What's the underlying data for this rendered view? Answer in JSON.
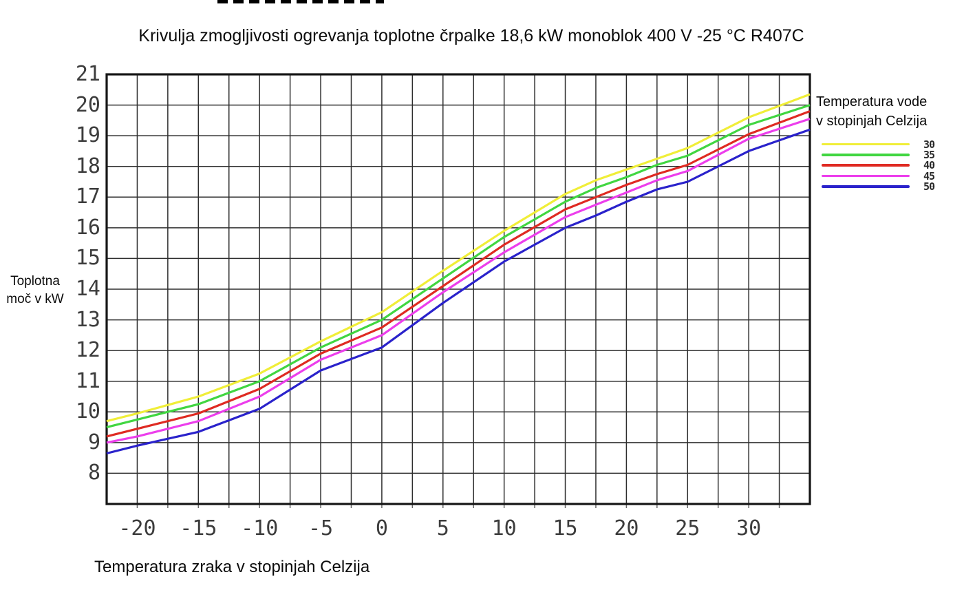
{
  "chart_data": {
    "type": "line",
    "title": "Krivulja zmogljivosti ogrevanja toplotne črpalke 18,6 kW monoblok 400 V -25 °C R407C",
    "xlabel": "Temperatura zraka v stopinjah Celzija",
    "ylabel": "Toplotna\nmoč v kW",
    "legend_title": "Temperatura vode\nv stopinjah Celzija",
    "legend_position": "right",
    "grid": "on",
    "xlim": [
      -22.5,
      35
    ],
    "ylim": [
      7,
      21
    ],
    "x_grid_step": 2.5,
    "y_grid_step": 1,
    "xticks": [
      -20,
      -15,
      -10,
      -5,
      0,
      5,
      10,
      15,
      20,
      25,
      30
    ],
    "yticks": [
      21,
      20,
      19,
      18,
      17,
      16,
      15,
      14,
      13,
      12,
      11,
      10,
      9,
      8
    ],
    "x": [
      -22.5,
      -20,
      -15,
      -10,
      -5,
      0,
      5,
      10,
      15,
      17.5,
      20,
      22.5,
      25,
      30,
      35
    ],
    "series": [
      {
        "name": "30",
        "color": "#f0ee38",
        "values": [
          9.7,
          9.95,
          10.5,
          11.25,
          12.3,
          13.25,
          14.6,
          15.9,
          17.1,
          17.55,
          17.9,
          18.25,
          18.6,
          19.6,
          20.35
        ]
      },
      {
        "name": "35",
        "color": "#41d641",
        "values": [
          9.5,
          9.75,
          10.25,
          11.0,
          12.1,
          13.0,
          14.35,
          15.7,
          16.85,
          17.3,
          17.65,
          18.05,
          18.35,
          19.35,
          20.0
        ]
      },
      {
        "name": "40",
        "color": "#df2a22",
        "values": [
          9.2,
          9.45,
          9.95,
          10.75,
          11.9,
          12.75,
          14.1,
          15.45,
          16.6,
          17.0,
          17.4,
          17.75,
          18.05,
          19.05,
          19.8
        ]
      },
      {
        "name": "45",
        "color": "#ec3eec",
        "values": [
          9.0,
          9.2,
          9.7,
          10.5,
          11.7,
          12.5,
          13.9,
          15.2,
          16.35,
          16.75,
          17.15,
          17.55,
          17.85,
          18.9,
          19.55
        ]
      },
      {
        "name": "50",
        "color": "#2a22cb",
        "values": [
          8.65,
          8.9,
          9.35,
          10.1,
          11.35,
          12.1,
          13.55,
          14.9,
          16.0,
          16.4,
          16.85,
          17.25,
          17.5,
          18.5,
          19.2
        ]
      }
    ]
  }
}
